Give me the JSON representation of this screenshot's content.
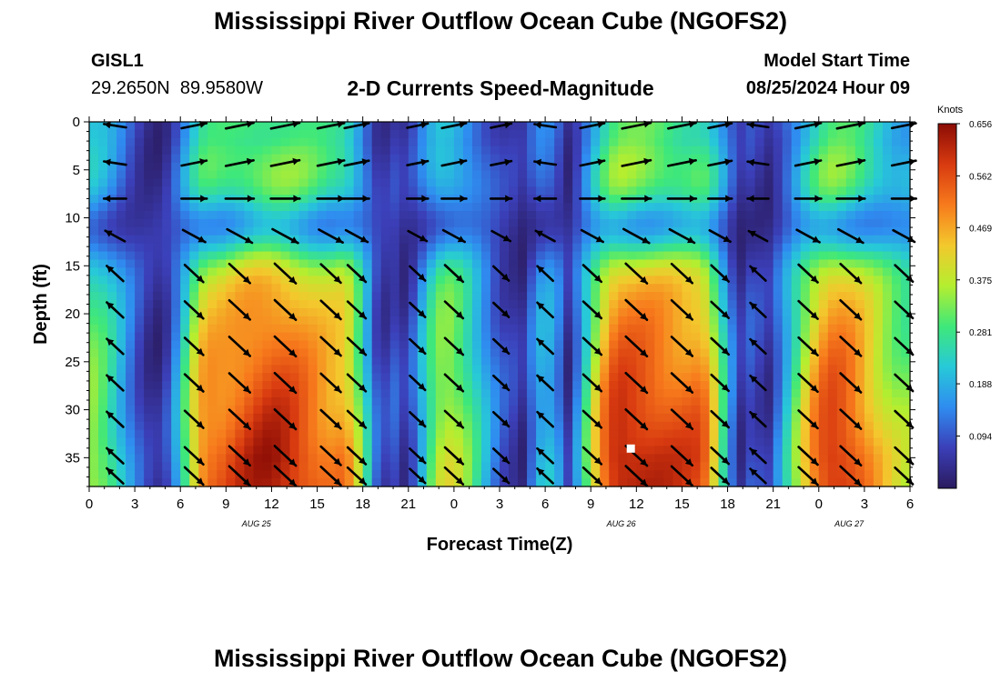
{
  "header": {
    "title": "Mississippi River Outflow Ocean Cube (NGOFS2)",
    "station": "GISL1",
    "coords": "29.2650N  89.9580W",
    "subtitle": "2-D Currents Speed-Magnitude",
    "model_start_label": "Model Start Time",
    "model_start_value": "08/25/2024 Hour 09"
  },
  "footer": {
    "title": "Mississippi River Outflow Ocean Cube (NGOFS2)"
  },
  "chart_data": {
    "type": "heatmap",
    "xlabel": "Forecast Time(Z)",
    "ylabel": "Depth (ft)",
    "xlim": [
      0,
      54
    ],
    "ylim": [
      38,
      0
    ],
    "x_tick_values": [
      0,
      3,
      6,
      9,
      12,
      15,
      18,
      21,
      24,
      27,
      30,
      33,
      36,
      39,
      42,
      45,
      48,
      51,
      54
    ],
    "x_tick_labels": [
      "0",
      "3",
      "6",
      "9",
      "12",
      "15",
      "18",
      "21",
      "0",
      "3",
      "6",
      "9",
      "12",
      "15",
      "18",
      "21",
      "0",
      "3",
      "6"
    ],
    "day_labels": [
      {
        "hour": 11,
        "text": "AUG 25"
      },
      {
        "hour": 35,
        "text": "AUG 26"
      },
      {
        "hour": 50,
        "text": "AUG 27"
      }
    ],
    "y_ticks": [
      0,
      5,
      10,
      15,
      20,
      25,
      30,
      35
    ],
    "colorbar": {
      "title": "Knots",
      "min": 0,
      "max": 0.656,
      "ticks": [
        "0.656",
        "0.562",
        "0.469",
        "0.375",
        "0.281",
        "0.188",
        "0.094"
      ],
      "colors": [
        "#2a1a5e",
        "#3b3fb8",
        "#2f8cf0",
        "#27c9d8",
        "#3fe87a",
        "#b5ee2f",
        "#f3c82d",
        "#f77a1c",
        "#d83a10",
        "#8b0c05"
      ]
    },
    "regime_hours": [
      0,
      4.5,
      8,
      12,
      16.5,
      20,
      23.5,
      28,
      30,
      35,
      40,
      43.5,
      49,
      54
    ],
    "regime_values": [
      -0.55,
      0,
      0.85,
      1,
      0.8,
      -0.1,
      0.6,
      0.05,
      -0.3,
      1,
      0.9,
      -0.1,
      0.95,
      0.55
    ],
    "vector_columns": [
      1.7,
      6.9,
      9.9,
      12.9,
      15.9,
      17.6,
      21.6,
      24.0,
      27.1,
      30.0,
      33.1,
      36.0,
      39.0,
      41.5,
      44.0,
      47.3,
      50.1,
      53.6
    ],
    "vector_depths": [
      0.4,
      4.3,
      8.0,
      11.9,
      15.8,
      19.6,
      23.4,
      27.2,
      31.0,
      34.8,
      36.9
    ],
    "marker": {
      "hour": 35.6,
      "depth": 34.0
    }
  }
}
